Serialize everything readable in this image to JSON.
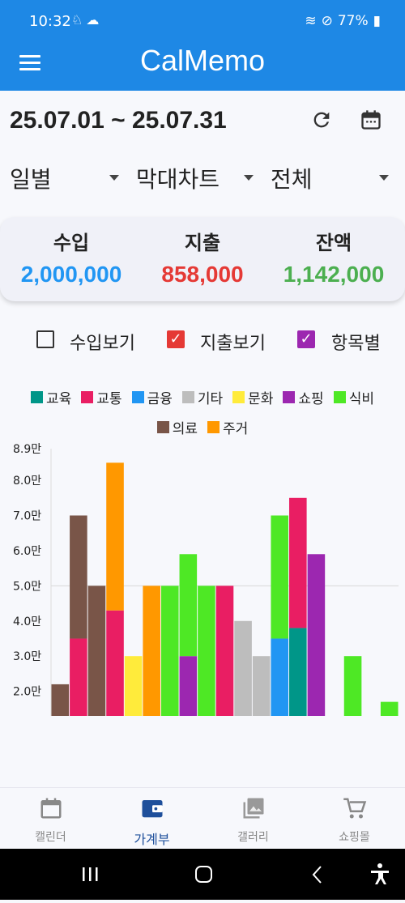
{
  "status": {
    "time": "10:32",
    "battery": "77%"
  },
  "app": {
    "title": "CalMemo"
  },
  "period": {
    "range": "25.07.01 ~ 25.07.31"
  },
  "filters": {
    "interval": "일별",
    "chart_type": "막대차트",
    "category": "전체"
  },
  "summary": {
    "income_label": "수입",
    "income_value": "2,000,000",
    "expense_label": "지출",
    "expense_value": "858,000",
    "balance_label": "잔액",
    "balance_value": "1,142,000",
    "colors": {
      "income": "#2196f3",
      "expense": "#e53935",
      "balance": "#4caf50"
    }
  },
  "options": [
    {
      "label": "수입보기",
      "checked": false
    },
    {
      "label": "지출보기",
      "checked": true,
      "color": "#e53935"
    },
    {
      "label": "항목별",
      "checked": true,
      "color": "#9c27b0"
    }
  ],
  "chart_data": {
    "type": "bar",
    "stacked": true,
    "legend": [
      {
        "name": "교육",
        "color": "#009688"
      },
      {
        "name": "교통",
        "color": "#e91e63"
      },
      {
        "name": "금융",
        "color": "#2196f3"
      },
      {
        "name": "기타",
        "color": "#bdbdbd"
      },
      {
        "name": "문화",
        "color": "#ffeb3b"
      },
      {
        "name": "쇼핑",
        "color": "#9c27b0"
      },
      {
        "name": "식비",
        "color": "#4ee825"
      },
      {
        "name": "의료",
        "color": "#795548"
      },
      {
        "name": "주거",
        "color": "#ff9800"
      }
    ],
    "y_ticks": [
      "2.0만",
      "3.0만",
      "4.0만",
      "5.0만",
      "6.0만",
      "7.0만",
      "8.0만",
      "8.9만"
    ],
    "y_tick_values": [
      20000,
      30000,
      40000,
      50000,
      60000,
      70000,
      80000,
      89000
    ],
    "ylim": [
      13000,
      89000
    ],
    "gridline": 50000,
    "bars": [
      [
        [
          "의료",
          22000
        ]
      ],
      [
        [
          "교통",
          35000
        ],
        [
          "의료",
          35000
        ]
      ],
      [
        [
          "의료",
          50000
        ]
      ],
      [
        [
          "교통",
          43000
        ],
        [
          "주거",
          42000
        ]
      ],
      [
        [
          "문화",
          30000
        ]
      ],
      [
        [
          "주거",
          50000
        ]
      ],
      [
        [
          "식비",
          50000
        ]
      ],
      [
        [
          "쇼핑",
          30000
        ],
        [
          "식비",
          29000
        ]
      ],
      [
        [
          "식비",
          50000
        ]
      ],
      [
        [
          "교통",
          50000
        ]
      ],
      [
        [
          "기타",
          40000
        ]
      ],
      [
        [
          "기타",
          30000
        ]
      ],
      [
        [
          "금융",
          35000
        ],
        [
          "식비",
          35000
        ]
      ],
      [
        [
          "교육",
          38000
        ],
        [
          "교통",
          37000
        ]
      ],
      [
        [
          "쇼핑",
          59000
        ]
      ],
      [],
      [
        [
          "식비",
          30000
        ]
      ],
      [],
      [
        [
          "식비",
          17000
        ]
      ]
    ]
  },
  "nav": [
    {
      "label": "캘린더",
      "icon": "calendar-icon"
    },
    {
      "label": "가계부",
      "icon": "wallet-icon",
      "active": true
    },
    {
      "label": "갤러리",
      "icon": "gallery-icon"
    },
    {
      "label": "쇼핑몰",
      "icon": "cart-icon"
    }
  ]
}
